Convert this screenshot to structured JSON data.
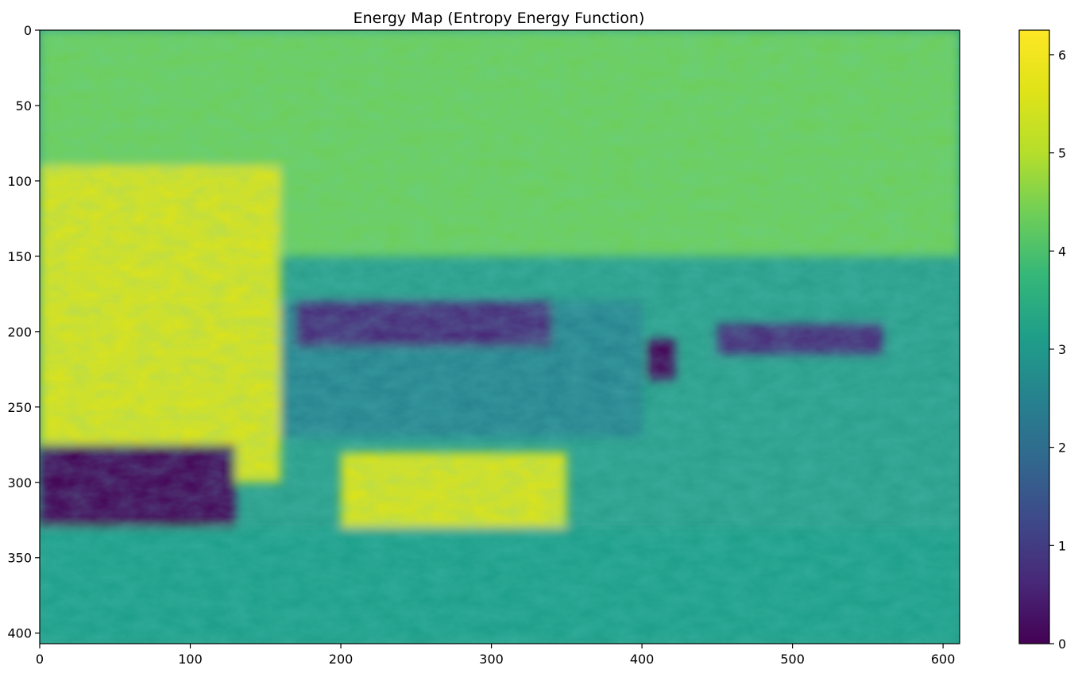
{
  "chart_data": {
    "type": "heatmap",
    "title": "Energy Map (Entropy Energy Function)",
    "xlabel": "",
    "ylabel": "",
    "xlim": [
      0,
      611
    ],
    "ylim": [
      407,
      0
    ],
    "x_ticks": [
      0,
      100,
      200,
      300,
      400,
      500,
      600
    ],
    "y_ticks": [
      0,
      50,
      100,
      150,
      200,
      250,
      300,
      350,
      400
    ],
    "colormap": "viridis",
    "colorbar": {
      "range": [
        0,
        6.25
      ],
      "ticks": [
        0,
        1,
        2,
        3,
        4,
        5,
        6
      ]
    },
    "grid": false,
    "regions": [
      {
        "desc": "upper sky/mountain texture",
        "x": [
          0,
          611
        ],
        "y": [
          0,
          150
        ],
        "value": 4.3
      },
      {
        "desc": "bright foliage left",
        "x": [
          0,
          160
        ],
        "y": [
          90,
          300
        ],
        "value": 5.8
      },
      {
        "desc": "flat water band",
        "x": [
          160,
          400
        ],
        "y": [
          180,
          270
        ],
        "value": 2.6
      },
      {
        "desc": "dark low-entropy patch top of water",
        "x": [
          170,
          340
        ],
        "y": [
          180,
          210
        ],
        "value": 0.5
      },
      {
        "desc": "dark patch under tree crown",
        "x": [
          403,
          422
        ],
        "y": [
          205,
          232
        ],
        "value": 0.2
      },
      {
        "desc": "right dark patch",
        "x": [
          450,
          560
        ],
        "y": [
          195,
          215
        ],
        "value": 0.7
      },
      {
        "desc": "bright shoreline band",
        "x": [
          200,
          350
        ],
        "y": [
          280,
          330
        ],
        "value": 5.4
      },
      {
        "desc": "dark lower-left block",
        "x": [
          0,
          130
        ],
        "y": [
          275,
          340
        ],
        "value": 0.0
      },
      {
        "desc": "ground texture bottom",
        "x": [
          0,
          611
        ],
        "y": [
          330,
          407
        ],
        "value": 3.3
      }
    ]
  }
}
